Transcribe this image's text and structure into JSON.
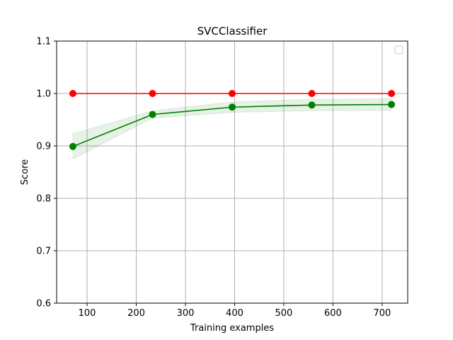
{
  "chart_data": {
    "type": "line",
    "title": "SVCClassifier",
    "xlabel": "Training examples",
    "ylabel": "Score",
    "xlim": [
      38,
      752
    ],
    "ylim": [
      0.6,
      1.1
    ],
    "x_ticks": [
      100,
      200,
      300,
      400,
      500,
      600,
      700
    ],
    "y_ticks": [
      0.6,
      0.7,
      0.8,
      0.9,
      1.0,
      1.1
    ],
    "x_tick_labels": [
      "100",
      "200",
      "300",
      "400",
      "500",
      "600",
      "700"
    ],
    "y_tick_labels": [
      "0.6",
      "0.7",
      "0.8",
      "0.9",
      "1.0",
      "1.1"
    ],
    "grid": true,
    "legend": {
      "placement": "top-right",
      "entries": []
    },
    "x": [
      71,
      233,
      395,
      557,
      719
    ],
    "series": [
      {
        "color": "#ff0000",
        "marker": "circle",
        "values": [
          1.0,
          1.0,
          1.0,
          1.0,
          1.0
        ],
        "band_lower": [
          1.0,
          1.0,
          1.0,
          1.0,
          1.0
        ],
        "band_upper": [
          1.0,
          1.0,
          1.0,
          1.0,
          1.0
        ]
      },
      {
        "color": "#008000",
        "marker": "circle",
        "values": [
          0.899,
          0.96,
          0.974,
          0.978,
          0.979
        ],
        "band_lower": [
          0.875,
          0.953,
          0.964,
          0.967,
          0.968
        ],
        "band_upper": [
          0.923,
          0.967,
          0.984,
          0.989,
          0.99
        ]
      }
    ]
  }
}
